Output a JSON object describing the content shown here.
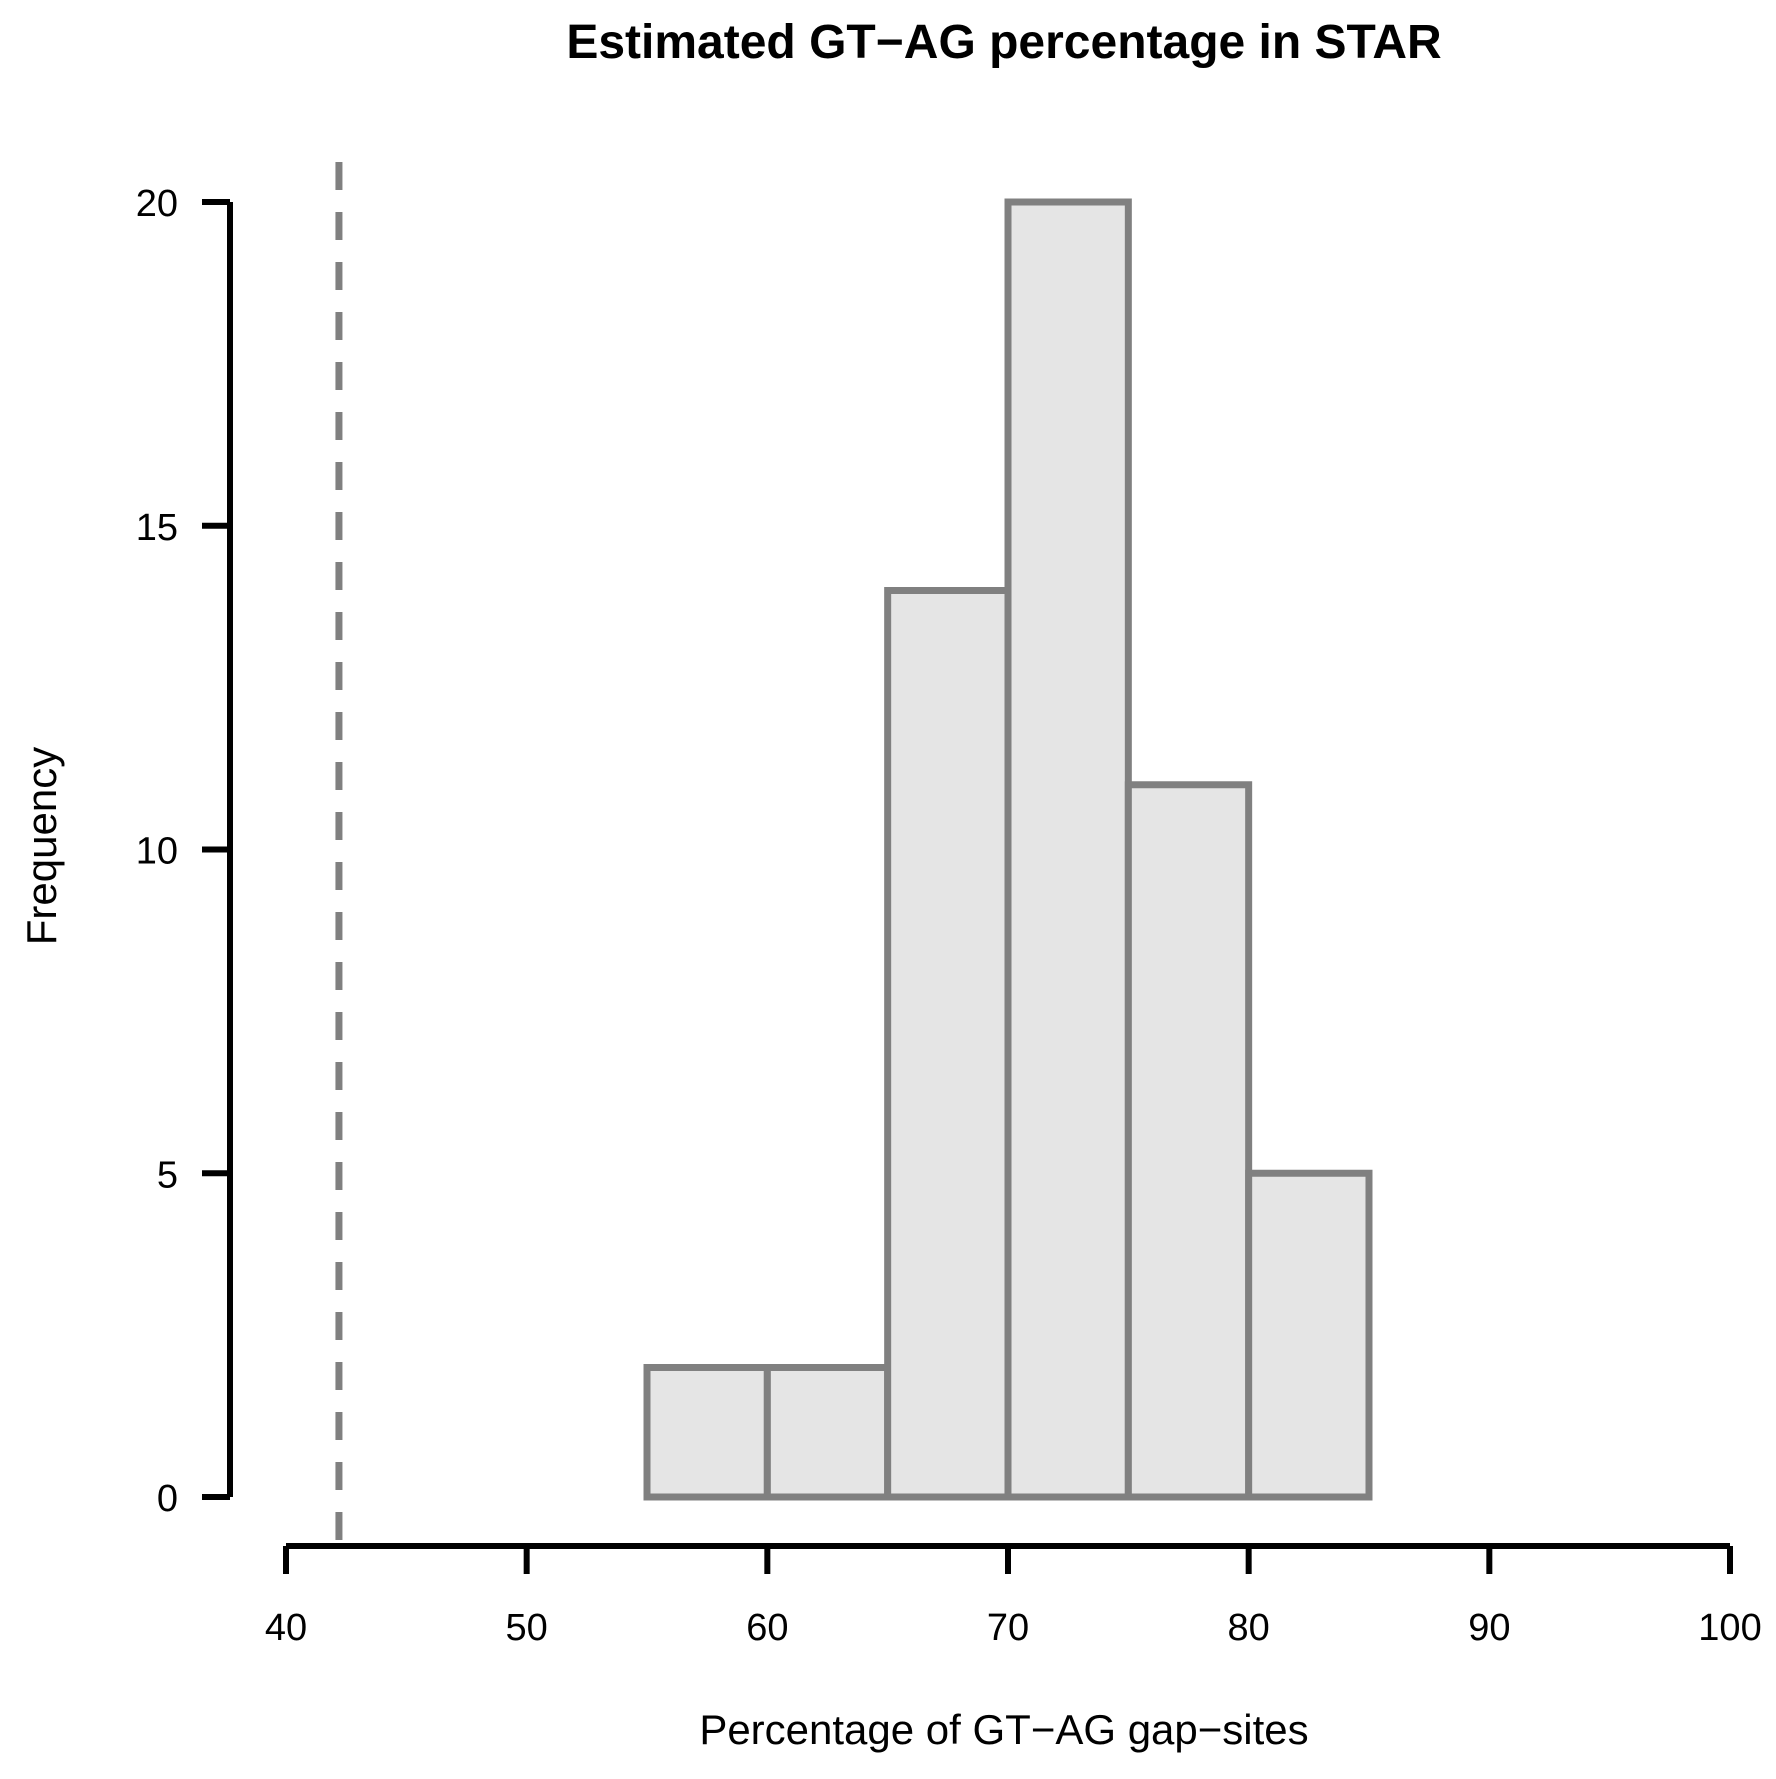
{
  "chart_data": {
    "type": "bar",
    "subtype": "histogram",
    "title": "Estimated GT−AG percentage in STAR",
    "xlabel": "Percentage of GT−AG gap−sites",
    "ylabel": "Frequency",
    "xlim": [
      40,
      100
    ],
    "ylim": [
      0,
      20
    ],
    "x_ticks": [
      40,
      50,
      60,
      70,
      80,
      90,
      100
    ],
    "x_tick_labels": [
      "40",
      "50",
      "60",
      "70",
      "80",
      "90",
      "100"
    ],
    "y_ticks": [
      0,
      5,
      10,
      15,
      20
    ],
    "y_tick_labels": [
      "0",
      "5",
      "10",
      "15",
      "20"
    ],
    "bins": [
      {
        "start": 55,
        "end": 60,
        "count": 2
      },
      {
        "start": 60,
        "end": 65,
        "count": 2
      },
      {
        "start": 65,
        "end": 70,
        "count": 14
      },
      {
        "start": 70,
        "end": 75,
        "count": 20
      },
      {
        "start": 75,
        "end": 80,
        "count": 11
      },
      {
        "start": 80,
        "end": 85,
        "count": 5
      }
    ],
    "reference_line": {
      "x": 42.2,
      "style": "dashed"
    },
    "grid": false,
    "colors": {
      "bar_fill": "#e5e5e5",
      "bar_stroke": "#808080",
      "reference_line": "#808080",
      "axis": "#000000"
    }
  }
}
